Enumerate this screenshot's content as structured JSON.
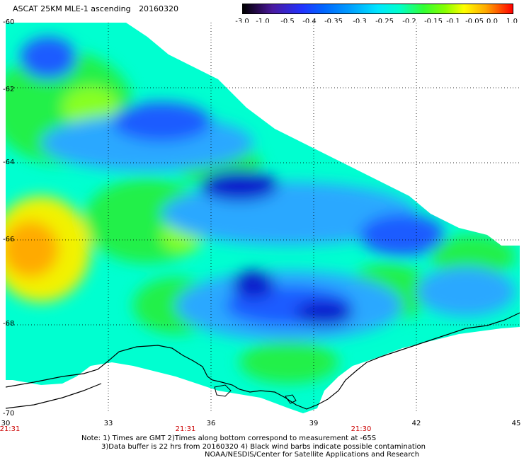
{
  "title": {
    "product": "ASCAT 25KM MLE-1 ascending",
    "date": "20160320"
  },
  "colorbar": {
    "labels": [
      "-3.0",
      "-1.0",
      "-0.5",
      "-0.4",
      "-0.35",
      "-0.3",
      "-0.25",
      "-0.2",
      "-0.15",
      "-0.1",
      "-0.05",
      "0.0",
      "1.0"
    ]
  },
  "axes": {
    "lat_labels": [
      "-60",
      "-62",
      "-64",
      "-66",
      "-68",
      "-70"
    ],
    "lon_labels": [
      "30",
      "33",
      "36",
      "39",
      "42",
      "45"
    ],
    "time_labels": [
      "21:31",
      "21:31",
      "21:30"
    ]
  },
  "colors": {
    "deep_blue": "#0a1acc",
    "blue": "#1e5cff",
    "sky": "#2aa8ff",
    "cyan": "#00e6ff",
    "aqua": "#00ffd0",
    "green": "#22f04a",
    "lime": "#88ff20",
    "yellow": "#f2f200",
    "orange": "#ffaa00",
    "coastline": "#000000",
    "time_text": "#cc0000"
  },
  "notes": [
    "Note: 1) Times are GMT 2)Times along bottom correspond to measurement at -65S",
    "3)Data buffer is 22 hrs from 20160320 4) Black wind barbs indicate possible contamination",
    "NOAA/NESDIS/Center for Satellite Applications and Research"
  ]
}
